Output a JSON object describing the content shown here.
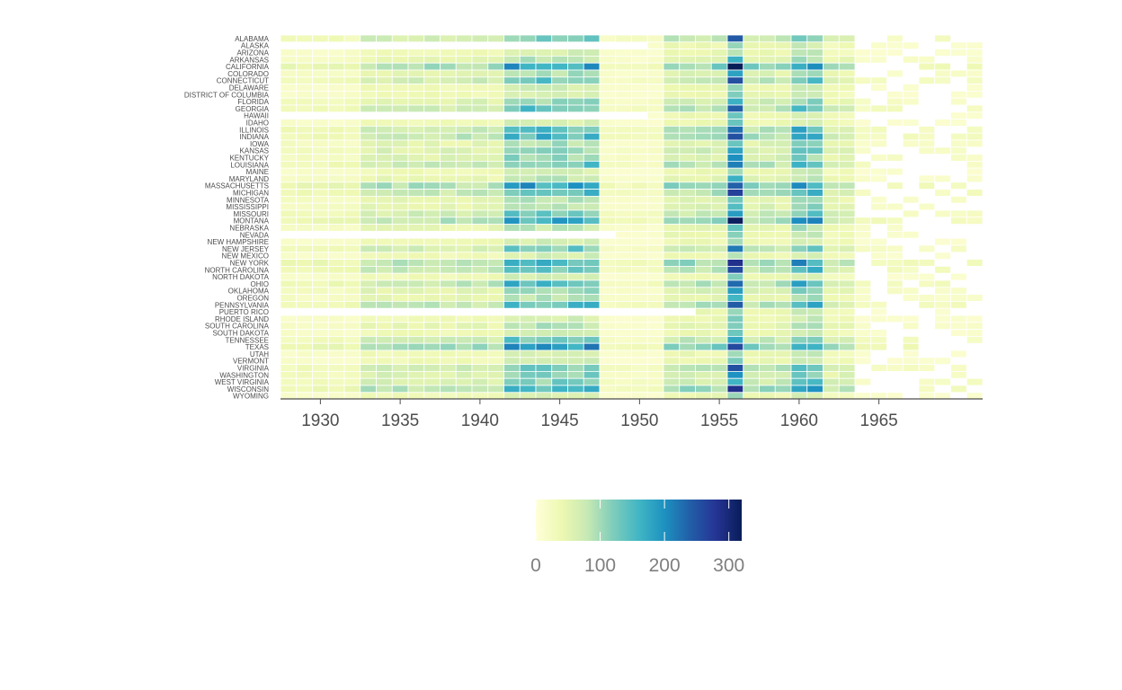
{
  "chart_data": {
    "type": "heatmap",
    "title": "",
    "xlabel": "",
    "ylabel": "",
    "x_ticks": [
      1930,
      1935,
      1940,
      1945,
      1950,
      1955,
      1960,
      1965
    ],
    "x_range": [
      1928,
      1971
    ],
    "states": [
      "ALABAMA",
      "ALASKA",
      "ARIZONA",
      "ARKANSAS",
      "CALIFORNIA",
      "COLORADO",
      "CONNECTICUT",
      "DELAWARE",
      "DISTRICT OF COLUMBIA",
      "FLORIDA",
      "GEORGIA",
      "HAWAII",
      "IDAHO",
      "ILLINOIS",
      "INDIANA",
      "IOWA",
      "KANSAS",
      "KENTUCKY",
      "LOUISIANA",
      "MAINE",
      "MARYLAND",
      "MASSACHUSETTS",
      "MICHIGAN",
      "MINNESOTA",
      "MISSISSIPPI",
      "MISSOURI",
      "MONTANA",
      "NEBRASKA",
      "NEVADA",
      "NEW HAMPSHIRE",
      "NEW JERSEY",
      "NEW MEXICO",
      "NEW YORK",
      "NORTH CAROLINA",
      "NORTH DAKOTA",
      "OHIO",
      "OKLAHOMA",
      "OREGON",
      "PENNSYLVANIA",
      "PUERTO RICO",
      "RHODE ISLAND",
      "SOUTH CAROLINA",
      "SOUTH DAKOTA",
      "TENNESSEE",
      "TEXAS",
      "UTAH",
      "VERMONT",
      "VIRGINIA",
      "WASHINGTON",
      "WEST VIRGINIA",
      "WISCONSIN",
      "WYOMING"
    ],
    "legend": {
      "position": "bottom",
      "min": 0,
      "max": 320,
      "ticks": [
        0,
        100,
        200,
        300
      ],
      "colors": [
        "#ffffd9",
        "#edf8b1",
        "#c7e9b4",
        "#7fcdbb",
        "#41b6c4",
        "#1d91c0",
        "#225ea8",
        "#253494",
        "#081d58"
      ]
    },
    "grid": false
  }
}
